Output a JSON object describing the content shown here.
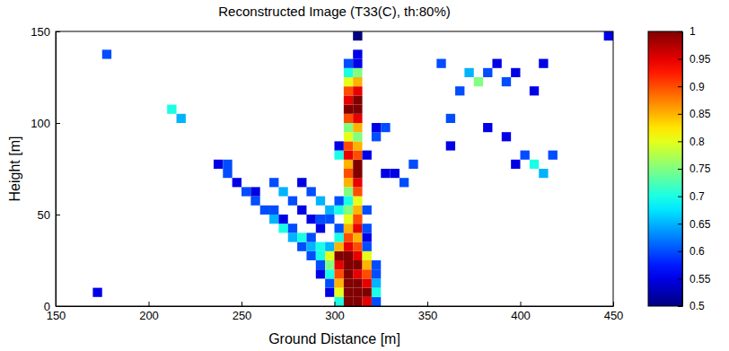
{
  "chart_data": {
    "type": "heatmap",
    "title": "Reconstructed Image (T33(C), th:80%)",
    "x_label": "Ground Distance [m]",
    "y_label": "Height [m]",
    "xlim": [
      150,
      450
    ],
    "xticks": [
      150,
      200,
      250,
      300,
      350,
      400,
      450
    ],
    "ylim": [
      0,
      150
    ],
    "yticks": [
      0,
      50,
      100,
      150
    ],
    "cell_size": [
      5,
      5
    ],
    "colorbar": {
      "range": [
        0.5,
        1
      ],
      "ticks": [
        0.5,
        0.55,
        0.6,
        0.65,
        0.7,
        0.75,
        0.8,
        0.85,
        0.9,
        0.95,
        1
      ]
    },
    "cells": [
      [
        300,
        0,
        0.7
      ],
      [
        305,
        0,
        1
      ],
      [
        310,
        0,
        1
      ],
      [
        315,
        0,
        0.95
      ],
      [
        320,
        0,
        0.6
      ],
      [
        295,
        5,
        0.55
      ],
      [
        300,
        5,
        0.8
      ],
      [
        305,
        5,
        1
      ],
      [
        310,
        5,
        1
      ],
      [
        315,
        5,
        1
      ],
      [
        320,
        5,
        0.7
      ],
      [
        295,
        10,
        0.6
      ],
      [
        300,
        10,
        0.85
      ],
      [
        305,
        10,
        1
      ],
      [
        310,
        10,
        1
      ],
      [
        315,
        10,
        0.95
      ],
      [
        320,
        10,
        0.65
      ],
      [
        290,
        15,
        0.55
      ],
      [
        295,
        15,
        0.7
      ],
      [
        300,
        15,
        0.9
      ],
      [
        305,
        15,
        1
      ],
      [
        310,
        15,
        0.95
      ],
      [
        315,
        15,
        0.9
      ],
      [
        320,
        15,
        0.6
      ],
      [
        290,
        20,
        0.6
      ],
      [
        295,
        20,
        0.75
      ],
      [
        300,
        20,
        0.95
      ],
      [
        305,
        20,
        1
      ],
      [
        310,
        20,
        1
      ],
      [
        315,
        20,
        0.85
      ],
      [
        320,
        20,
        0.6
      ],
      [
        285,
        25,
        0.6
      ],
      [
        290,
        25,
        0.7
      ],
      [
        295,
        25,
        0.8
      ],
      [
        300,
        25,
        1
      ],
      [
        305,
        25,
        1
      ],
      [
        310,
        25,
        0.95
      ],
      [
        315,
        25,
        0.8
      ],
      [
        280,
        30,
        0.6
      ],
      [
        285,
        30,
        0.65
      ],
      [
        290,
        30,
        0.7
      ],
      [
        295,
        30,
        0.65
      ],
      [
        300,
        30,
        0.85
      ],
      [
        305,
        30,
        0.95
      ],
      [
        310,
        30,
        0.9
      ],
      [
        315,
        30,
        0.6
      ],
      [
        275,
        35,
        0.65
      ],
      [
        280,
        35,
        0.7
      ],
      [
        285,
        35,
        0.6
      ],
      [
        300,
        35,
        0.7
      ],
      [
        305,
        35,
        0.9
      ],
      [
        310,
        35,
        0.85
      ],
      [
        315,
        35,
        0.55
      ],
      [
        270,
        40,
        0.7
      ],
      [
        275,
        40,
        0.6
      ],
      [
        290,
        40,
        0.55
      ],
      [
        300,
        40,
        0.6
      ],
      [
        305,
        40,
        0.85
      ],
      [
        310,
        40,
        0.95
      ],
      [
        315,
        40,
        0.6
      ],
      [
        265,
        45,
        0.65
      ],
      [
        270,
        45,
        0.55
      ],
      [
        285,
        45,
        0.55
      ],
      [
        290,
        45,
        0.6
      ],
      [
        295,
        45,
        0.6
      ],
      [
        305,
        45,
        0.8
      ],
      [
        310,
        45,
        0.9
      ],
      [
        260,
        50,
        0.6
      ],
      [
        265,
        50,
        0.6
      ],
      [
        280,
        50,
        0.55
      ],
      [
        295,
        50,
        0.65
      ],
      [
        300,
        50,
        0.7
      ],
      [
        305,
        50,
        0.75
      ],
      [
        310,
        50,
        0.85
      ],
      [
        315,
        50,
        0.6
      ],
      [
        255,
        55,
        0.6
      ],
      [
        275,
        55,
        0.6
      ],
      [
        290,
        55,
        0.65
      ],
      [
        300,
        55,
        0.6
      ],
      [
        305,
        55,
        0.7
      ],
      [
        310,
        55,
        0.8
      ],
      [
        250,
        60,
        0.6
      ],
      [
        255,
        60,
        0.55
      ],
      [
        270,
        60,
        0.65
      ],
      [
        285,
        60,
        0.6
      ],
      [
        305,
        60,
        0.75
      ],
      [
        310,
        60,
        0.9
      ],
      [
        245,
        65,
        0.55
      ],
      [
        265,
        65,
        0.6
      ],
      [
        280,
        65,
        0.55
      ],
      [
        305,
        65,
        0.85
      ],
      [
        310,
        65,
        0.95
      ],
      [
        335,
        65,
        0.6
      ],
      [
        240,
        70,
        0.6
      ],
      [
        305,
        70,
        0.9
      ],
      [
        310,
        70,
        1
      ],
      [
        325,
        70,
        0.55
      ],
      [
        330,
        70,
        0.55
      ],
      [
        235,
        75,
        0.55
      ],
      [
        240,
        75,
        0.6
      ],
      [
        305,
        75,
        0.85
      ],
      [
        310,
        75,
        1
      ],
      [
        340,
        75,
        0.6
      ],
      [
        300,
        80,
        0.7
      ],
      [
        305,
        80,
        0.95
      ],
      [
        310,
        80,
        0.9
      ],
      [
        315,
        80,
        0.55
      ],
      [
        300,
        85,
        0.55
      ],
      [
        305,
        85,
        0.9
      ],
      [
        310,
        85,
        0.85
      ],
      [
        360,
        85,
        0.55
      ],
      [
        305,
        90,
        0.8
      ],
      [
        310,
        90,
        0.75
      ],
      [
        320,
        90,
        0.6
      ],
      [
        390,
        90,
        0.55
      ],
      [
        305,
        95,
        0.75
      ],
      [
        310,
        95,
        0.85
      ],
      [
        320,
        95,
        0.55
      ],
      [
        325,
        95,
        0.6
      ],
      [
        380,
        95,
        0.55
      ],
      [
        215,
        100,
        0.65
      ],
      [
        305,
        100,
        0.9
      ],
      [
        310,
        100,
        0.95
      ],
      [
        360,
        100,
        0.6
      ],
      [
        210,
        105,
        0.7
      ],
      [
        305,
        105,
        1
      ],
      [
        310,
        105,
        1
      ],
      [
        305,
        110,
        0.95
      ],
      [
        310,
        110,
        1
      ],
      [
        305,
        115,
        0.9
      ],
      [
        310,
        115,
        0.95
      ],
      [
        365,
        115,
        0.6
      ],
      [
        405,
        115,
        0.55
      ],
      [
        305,
        120,
        0.8
      ],
      [
        310,
        120,
        0.85
      ],
      [
        375,
        120,
        0.75
      ],
      [
        390,
        120,
        0.6
      ],
      [
        305,
        125,
        0.7
      ],
      [
        310,
        125,
        0.75
      ],
      [
        370,
        125,
        0.65
      ],
      [
        380,
        125,
        0.6
      ],
      [
        395,
        125,
        0.55
      ],
      [
        305,
        130,
        0.6
      ],
      [
        310,
        130,
        0.55
      ],
      [
        355,
        130,
        0.6
      ],
      [
        385,
        130,
        0.55
      ],
      [
        410,
        130,
        0.55
      ],
      [
        175,
        135,
        0.6
      ],
      [
        310,
        135,
        0.55
      ],
      [
        310,
        145,
        0.5
      ],
      [
        445,
        145,
        0.55
      ],
      [
        170,
        5,
        0.55
      ],
      [
        395,
        75,
        0.55
      ],
      [
        400,
        80,
        0.6
      ],
      [
        405,
        75,
        0.7
      ],
      [
        410,
        70,
        0.65
      ],
      [
        415,
        80,
        0.6
      ]
    ]
  }
}
